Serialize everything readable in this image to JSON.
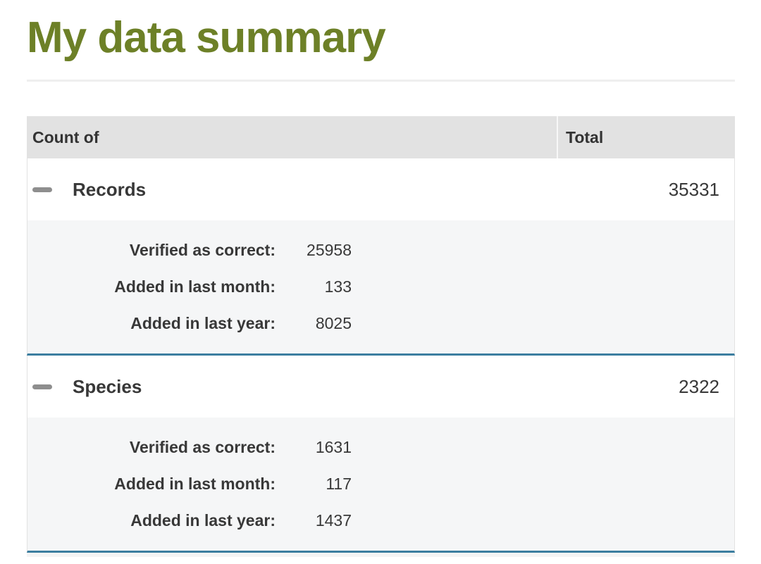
{
  "page": {
    "title": "My data summary"
  },
  "colors": {
    "title_green": "#6d8027",
    "header_bg": "#e2e2e2",
    "details_bg": "#f5f6f7",
    "section_divider_teal": "#3c7ea0",
    "toggle_icon_gray": "#8e8e8e",
    "text_dark": "#383838"
  },
  "table": {
    "headers": [
      "Count of",
      "Total"
    ],
    "sections": [
      {
        "label": "Records",
        "total": "35331",
        "details": [
          {
            "label": "Verified as correct:",
            "value": "25958"
          },
          {
            "label": "Added in last month:",
            "value": "133"
          },
          {
            "label": "Added in last year:",
            "value": "8025"
          }
        ]
      },
      {
        "label": "Species",
        "total": "2322",
        "details": [
          {
            "label": "Verified as correct:",
            "value": "1631"
          },
          {
            "label": "Added in last month:",
            "value": "117"
          },
          {
            "label": "Added in last year:",
            "value": "1437"
          }
        ]
      }
    ]
  }
}
